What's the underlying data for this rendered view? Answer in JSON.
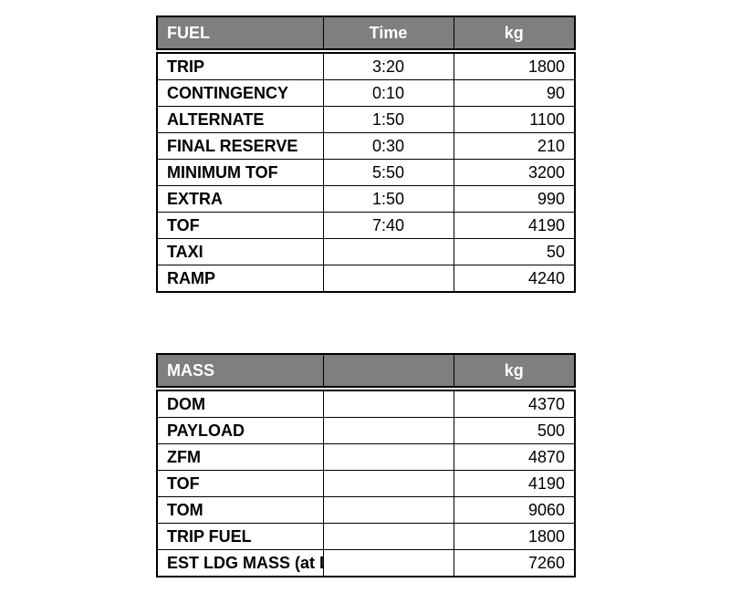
{
  "fuel_table": {
    "headers": [
      "FUEL",
      "Time",
      "kg"
    ],
    "rows": [
      {
        "item": "TRIP",
        "time": "3:20",
        "kg": "1800"
      },
      {
        "item": "CONTINGENCY",
        "time": "0:10",
        "kg": "90"
      },
      {
        "item": "ALTERNATE",
        "time": "1:50",
        "kg": "1100"
      },
      {
        "item": "FINAL RESERVE",
        "time": "0:30",
        "kg": "210"
      },
      {
        "item": "MINIMUM TOF",
        "time": "5:50",
        "kg": "3200"
      },
      {
        "item": "EXTRA",
        "time": "1:50",
        "kg": "990"
      },
      {
        "item": "TOF",
        "time": "7:40",
        "kg": "4190"
      },
      {
        "item": "TAXI",
        "time": "",
        "kg": "50"
      },
      {
        "item": "RAMP",
        "time": "",
        "kg": "4240"
      }
    ]
  },
  "mass_table": {
    "headers": [
      "MASS",
      "",
      "kg"
    ],
    "rows": [
      {
        "item": "DOM",
        "time": "",
        "kg": "4370"
      },
      {
        "item": "PAYLOAD",
        "time": "",
        "kg": "500"
      },
      {
        "item": "ZFM",
        "time": "",
        "kg": "4870"
      },
      {
        "item": "TOF",
        "time": "",
        "kg": "4190"
      },
      {
        "item": "TOM",
        "time": "",
        "kg": "9060"
      },
      {
        "item": "TRIP FUEL",
        "time": "",
        "kg": "1800"
      },
      {
        "item": "EST LDG MASS  (at DEST.)",
        "time": "",
        "kg": "7260"
      }
    ]
  },
  "colors": {
    "header_background": "#7f7f7f",
    "header_text": "#ffffff",
    "border": "#000000"
  }
}
